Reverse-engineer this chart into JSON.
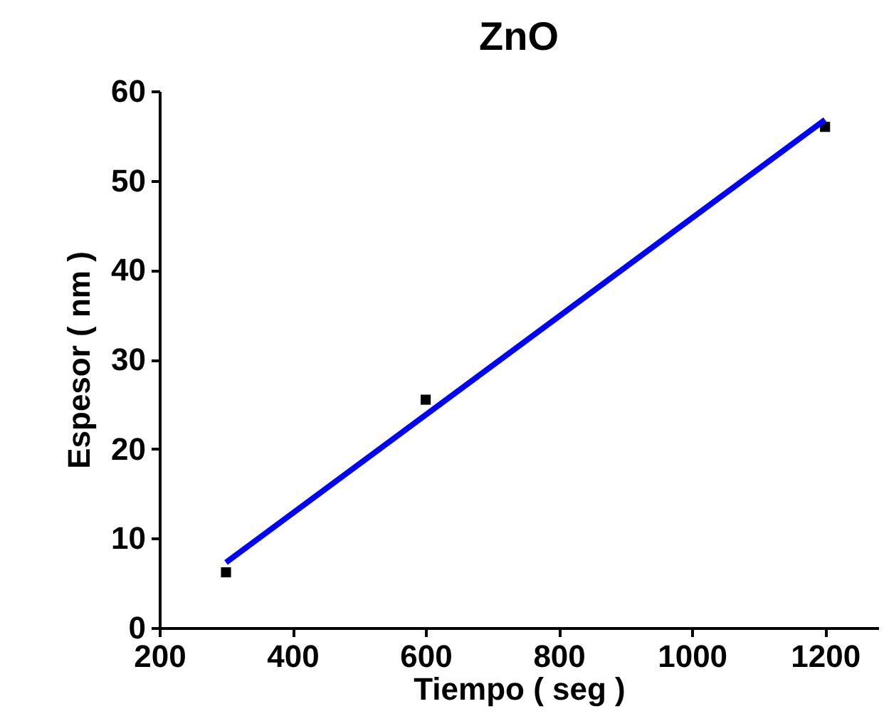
{
  "chart_data": {
    "type": "scatter",
    "title": "ZnO",
    "xlabel": "Tiempo ( seg )",
    "ylabel": "Espesor ( nm )",
    "xlim": [
      200,
      1280
    ],
    "xticks": [
      200,
      400,
      600,
      800,
      1000,
      1200
    ],
    "ylim": [
      0,
      60
    ],
    "yticks": [
      0,
      10,
      20,
      30,
      40,
      50,
      60
    ],
    "grid": false,
    "series": [
      {
        "color": "#000000",
        "marker": "square",
        "x": [
          300,
          600,
          1200
        ],
        "values": [
          6.2,
          25.5,
          56
        ]
      },
      {
        "type": "line",
        "color": "#0000ff",
        "line_style": "solid",
        "marker": "none",
        "x": [
          300,
          1200
        ],
        "values": [
          7.3,
          56.8
        ]
      }
    ]
  }
}
